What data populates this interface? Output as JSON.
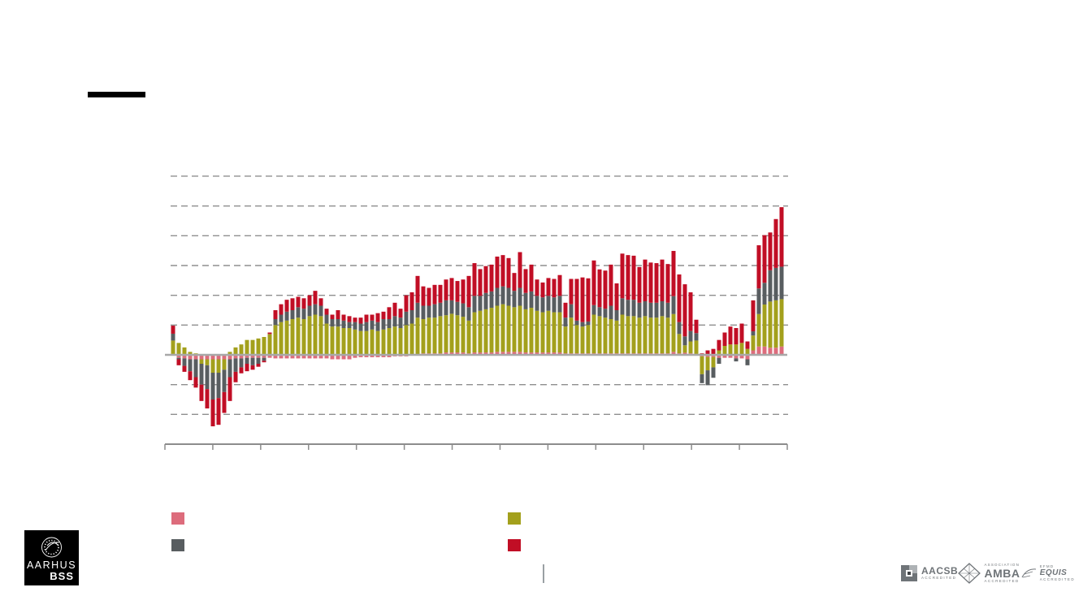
{
  "slide": {
    "background_color": "#ffffff",
    "title_bar_color": "#000000"
  },
  "chart_data": {
    "type": "bar",
    "stacked": true,
    "title": "",
    "xlabel": "",
    "ylabel": "",
    "x_tick_count": 14,
    "x_tick_labels_visible": false,
    "y_tick_labels_visible": false,
    "ylim": [
      -3,
      6
    ],
    "y_gridlines": [
      6,
      5,
      4,
      3,
      2,
      1,
      -1,
      -2
    ],
    "zero_line_color": "#a8a8a8",
    "axis_color": "#8c8c8c",
    "gridline_color": "#8f8f8f",
    "series": [
      {
        "name": "series-pink",
        "color": "#dd6c7c",
        "values": [
          0.03,
          -0.1,
          -0.12,
          -0.15,
          -0.15,
          -0.15,
          -0.15,
          -0.15,
          -0.15,
          -0.15,
          -0.15,
          -0.12,
          -0.12,
          -0.1,
          -0.1,
          -0.1,
          -0.1,
          -0.1,
          -0.12,
          -0.12,
          -0.12,
          -0.12,
          -0.12,
          -0.12,
          -0.12,
          -0.12,
          -0.12,
          -0.12,
          -0.15,
          -0.15,
          -0.15,
          -0.15,
          -0.1,
          -0.08,
          -0.08,
          -0.08,
          -0.08,
          -0.08,
          -0.08,
          -0.05,
          -0.05,
          -0.05,
          0,
          0,
          0.05,
          0.05,
          0.05,
          0.05,
          0.08,
          0.08,
          0.08,
          0.08,
          0.05,
          0.08,
          0.08,
          0.08,
          0.08,
          0.1,
          0.1,
          0.1,
          0.1,
          0.1,
          0.08,
          0.08,
          0.08,
          0.08,
          0.08,
          0.08,
          0.08,
          0.05,
          0.05,
          0.05,
          0.05,
          0.05,
          0.05,
          0.05,
          0.05,
          0.05,
          0.05,
          0.05,
          0.05,
          0.05,
          0.05,
          0.05,
          0.05,
          0.05,
          0.05,
          0.05,
          0.1,
          0.05,
          0.07,
          0.05,
          0.03,
          -0.05,
          -0.07,
          -0.07,
          -0.1,
          -0.1,
          -0.1,
          -0.12,
          -0.12,
          -0.15,
          0.15,
          0.28,
          0.28,
          0.24,
          0.24,
          0.28
        ]
      },
      {
        "name": "series-olive",
        "color": "#a3a01c",
        "values": [
          0.45,
          0.4,
          0.25,
          0.1,
          0.05,
          -0.15,
          -0.2,
          -0.45,
          -0.45,
          -0.35,
          0.1,
          0.25,
          0.35,
          0.5,
          0.5,
          0.55,
          0.6,
          0.7,
          1.0,
          1.1,
          1.15,
          1.2,
          1.25,
          1.2,
          1.3,
          1.35,
          1.3,
          1.05,
          0.95,
          0.95,
          0.9,
          0.9,
          0.85,
          0.8,
          0.8,
          0.85,
          0.8,
          0.85,
          0.9,
          0.95,
          0.9,
          1.0,
          1.05,
          1.25,
          1.15,
          1.2,
          1.2,
          1.25,
          1.25,
          1.3,
          1.25,
          1.2,
          1.1,
          1.35,
          1.4,
          1.45,
          1.5,
          1.55,
          1.6,
          1.55,
          1.5,
          1.55,
          1.45,
          1.5,
          1.4,
          1.35,
          1.4,
          1.35,
          1.35,
          0.9,
          1.2,
          0.95,
          0.9,
          0.95,
          1.3,
          1.25,
          1.2,
          1.15,
          1.1,
          1.3,
          1.25,
          1.25,
          1.2,
          1.25,
          1.2,
          1.2,
          1.25,
          1.2,
          1.27,
          0.65,
          0.25,
          0.4,
          0.45,
          -0.6,
          -0.45,
          -0.35,
          0.15,
          0.3,
          0.35,
          0.35,
          0.4,
          0.2,
          0.5,
          1.09,
          1.41,
          1.55,
          1.59,
          1.59
        ]
      },
      {
        "name": "series-gray",
        "color": "#585d60",
        "values": [
          0.23,
          -0.05,
          -0.25,
          -0.4,
          -0.6,
          -0.7,
          -0.8,
          -0.9,
          -0.85,
          -0.75,
          -0.6,
          -0.45,
          -0.3,
          -0.2,
          -0.25,
          -0.2,
          -0.1,
          0,
          0.2,
          0.25,
          0.3,
          0.3,
          0.35,
          0.35,
          0.35,
          0.35,
          0.35,
          0.3,
          0.25,
          0.25,
          0.25,
          0.2,
          0.25,
          0.25,
          0.3,
          0.3,
          0.3,
          0.35,
          0.3,
          0.35,
          0.35,
          0.45,
          0.45,
          0.5,
          0.45,
          0.4,
          0.45,
          0.45,
          0.5,
          0.45,
          0.45,
          0.45,
          0.45,
          0.55,
          0.5,
          0.55,
          0.55,
          0.6,
          0.6,
          0.6,
          0.55,
          0.6,
          0.55,
          0.55,
          0.5,
          0.5,
          0.5,
          0.5,
          0.55,
          0.3,
          0.45,
          0.15,
          0.15,
          0.12,
          0.32,
          0.3,
          0.3,
          0.45,
          0.35,
          0.55,
          0.55,
          0.55,
          0.5,
          0.5,
          0.5,
          0.5,
          0.5,
          0.5,
          0.6,
          0.4,
          0.3,
          0.35,
          0.25,
          -0.3,
          -0.5,
          -0.35,
          -0.2,
          0,
          0,
          -0.1,
          0,
          -0.2,
          0.14,
          0.86,
          0.73,
          1.05,
          1.09,
          1.09
        ]
      },
      {
        "name": "series-red",
        "color": "#c10e25",
        "values": [
          0.27,
          -0.2,
          -0.2,
          -0.3,
          -0.35,
          -0.55,
          -0.65,
          -0.9,
          -0.9,
          -0.7,
          -0.8,
          -0.35,
          -0.2,
          -0.25,
          -0.15,
          -0.1,
          -0.05,
          0.05,
          0.3,
          0.35,
          0.4,
          0.4,
          0.35,
          0.35,
          0.35,
          0.45,
          0.25,
          0.2,
          0.15,
          0.3,
          0.2,
          0.2,
          0.15,
          0.2,
          0.25,
          0.2,
          0.3,
          0.25,
          0.4,
          0.45,
          0.3,
          0.55,
          0.6,
          0.9,
          0.65,
          0.6,
          0.65,
          0.6,
          0.7,
          0.75,
          0.7,
          0.8,
          1.05,
          1.1,
          0.9,
          0.9,
          0.9,
          1.05,
          1.05,
          1.0,
          0.6,
          1.2,
          0.8,
          0.9,
          0.55,
          0.5,
          0.6,
          0.62,
          0.7,
          0.5,
          0.85,
          1.4,
          1.5,
          1.45,
          1.5,
          1.27,
          1.28,
          1.38,
          0.9,
          1.5,
          1.5,
          1.48,
          1.2,
          1.4,
          1.35,
          1.33,
          1.4,
          1.3,
          1.52,
          1.6,
          1.75,
          1.3,
          0.45,
          0.05,
          0.15,
          0.2,
          0.35,
          0.45,
          0.6,
          0.55,
          0.65,
          0.25,
          1.04,
          1.45,
          1.6,
          1.27,
          1.64,
          2.0
        ]
      }
    ],
    "legend_position": "bottom",
    "legend_labels_visible": false
  },
  "legend": {
    "items": [
      {
        "name": "legend-swatch-pink",
        "color": "#dd6c7c"
      },
      {
        "name": "legend-swatch-olive",
        "color": "#a3a01c"
      },
      {
        "name": "legend-swatch-gray",
        "color": "#585d60"
      },
      {
        "name": "legend-swatch-red",
        "color": "#c10e25"
      }
    ]
  },
  "branding": {
    "university": "AARHUS",
    "school": "BSS"
  },
  "accreditations": [
    {
      "icon": "aacsb-squares-icon",
      "top": "",
      "name": "AACSB",
      "sub": "ACCREDITED"
    },
    {
      "icon": "amba-diamond-icon",
      "top": "ASSOCIATION",
      "name": "AMBA",
      "sub": "ACCREDITED"
    },
    {
      "icon": "equis-swoosh-icon",
      "top": "EFMD",
      "name": "EQUIS",
      "sub": "ACCREDITED"
    }
  ]
}
